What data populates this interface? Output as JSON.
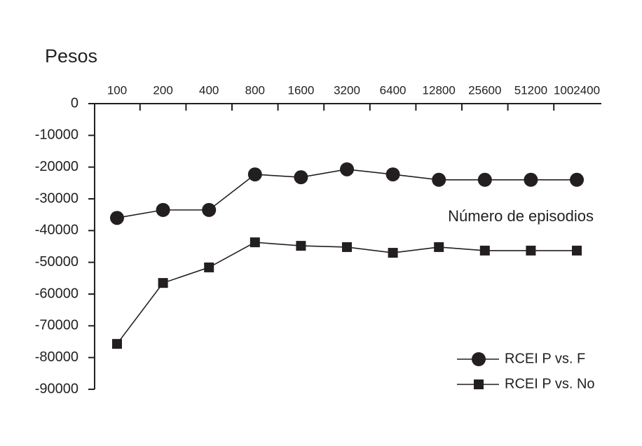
{
  "chart_data": {
    "type": "line",
    "y_label": "Pesos",
    "x_label": "Número de episodios",
    "categories": [
      "100",
      "200",
      "400",
      "800",
      "1600",
      "3200",
      "6400",
      "12800",
      "25600",
      "51200",
      "1002400"
    ],
    "series": [
      {
        "name": "RCEI P vs. F",
        "color": "#231f20",
        "marker": "circle",
        "values": [
          -36000,
          -33500,
          -33500,
          -22300,
          -23200,
          -20700,
          -22300,
          -24000,
          -24000,
          -24000,
          -24000
        ]
      },
      {
        "name": "RCEI P vs. No",
        "color": "#231f20",
        "marker": "square",
        "values": [
          -75700,
          -56500,
          -51600,
          -43700,
          -44800,
          -45200,
          -47000,
          -45200,
          -46300,
          -46300,
          -46300
        ]
      }
    ],
    "ylim": [
      0,
      -90000
    ],
    "yticks": [
      0,
      -10000,
      -20000,
      -30000,
      -40000,
      -50000,
      -60000,
      -70000,
      -80000,
      -90000
    ],
    "grid": false,
    "legend": "lower right"
  }
}
